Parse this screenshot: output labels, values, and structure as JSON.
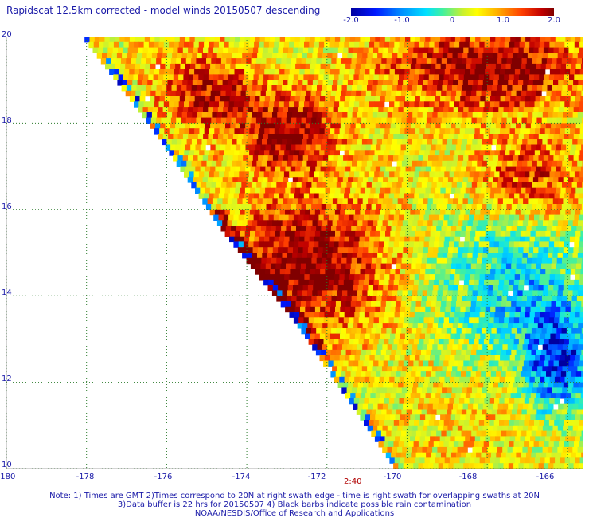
{
  "title": "Rapidscat 12.5km corrected - model winds 20150507 descending",
  "colorbar": {
    "ticks": [
      "-2.0",
      "-1.0",
      "0",
      "1.0",
      "2.0"
    ],
    "min": -2.0,
    "max": 2.0,
    "colors": [
      "#0000a0",
      "#0018ff",
      "#0090ff",
      "#00e0ff",
      "#40f0a0",
      "#c8f030",
      "#ffff00",
      "#ffb000",
      "#ff4000",
      "#c00000",
      "#800000"
    ]
  },
  "axes": {
    "lat_labels": [
      "20",
      "18",
      "16",
      "14",
      "12",
      "10"
    ],
    "lon_labels": [
      "-180",
      "-178",
      "-176",
      "-174",
      "-172",
      "-170",
      "-168",
      "-166"
    ],
    "lat_range": [
      10,
      20
    ],
    "lon_range": [
      -180,
      -165.6
    ]
  },
  "swath_time": "2:40",
  "notes": [
    "Note: 1) Times are GMT 2)Times correspond to 20N at right swath edge - time is right swath for overlapping swaths at 20N",
    "3)Data buffer is 22 hrs for 20150507 4) Black barbs indicate possible rain contamination",
    "NOAA/NESDIS/Office of Research and Applications"
  ],
  "chart_data": {
    "type": "heatmap",
    "title": "Rapidscat 12.5km corrected - model winds 20150507 descending",
    "x_ticks": [
      -180,
      -178,
      -176,
      -174,
      -172,
      -170,
      -168,
      -166
    ],
    "y_ticks": [
      20,
      18,
      16,
      14,
      12,
      10
    ],
    "value_range": [
      -2.0,
      2.0
    ],
    "swath_west_edge": [
      [
        -178.1,
        20
      ],
      [
        -176.3,
        17.8
      ],
      [
        -174.6,
        15.5
      ],
      [
        -172.8,
        13.4
      ],
      [
        -170.3,
        10
      ]
    ],
    "regions": [
      {
        "lon": [
          -174,
          -171
        ],
        "lat": [
          13.5,
          16
        ],
        "value": 2.0
      },
      {
        "lon": [
          -174,
          -172
        ],
        "lat": [
          17,
          18.5
        ],
        "value": 1.8
      },
      {
        "lon": [
          -170,
          -166
        ],
        "lat": [
          18.5,
          20
        ],
        "value": 2.0
      },
      {
        "lon": [
          -176,
          -174
        ],
        "lat": [
          18,
          19.5
        ],
        "value": 1.6
      },
      {
        "lon": [
          -168,
          -166
        ],
        "lat": [
          16,
          17.5
        ],
        "value": 1.4
      },
      {
        "lon": [
          -167,
          -165.6
        ],
        "lat": [
          11.5,
          13.5
        ],
        "value": -1.6
      },
      {
        "lon": [
          -169,
          -166
        ],
        "lat": [
          13,
          15.5
        ],
        "value": -0.8
      },
      {
        "lon": [
          -170,
          -167
        ],
        "lat": [
          10,
          12
        ],
        "value": 0.5
      }
    ]
  }
}
